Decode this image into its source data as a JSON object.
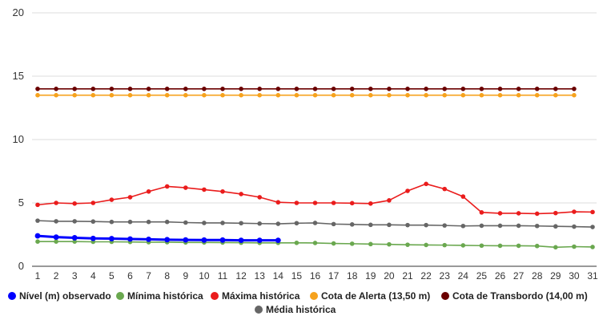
{
  "chart_data": {
    "type": "line",
    "x": [
      1,
      2,
      3,
      4,
      5,
      6,
      7,
      8,
      9,
      10,
      11,
      12,
      13,
      14,
      15,
      16,
      17,
      18,
      19,
      20,
      21,
      22,
      23,
      24,
      25,
      26,
      27,
      28,
      29,
      30,
      31
    ],
    "ylim": [
      0,
      20
    ],
    "yticks": [
      0,
      5,
      10,
      15,
      20
    ],
    "grid": "horizontal",
    "legend_position": "bottom",
    "series": [
      {
        "name": "Nível (m) observado",
        "color": "#0000ff",
        "values": [
          2.4,
          2.3,
          2.25,
          2.2,
          2.18,
          2.15,
          2.13,
          2.1,
          2.08,
          2.07,
          2.07,
          2.05,
          2.05,
          2.05,
          null,
          null,
          null,
          null,
          null,
          null,
          null,
          null,
          null,
          null,
          null,
          null,
          null,
          null,
          null,
          null,
          null
        ]
      },
      {
        "name": "Mínima histórica",
        "color": "#6aa84f",
        "values": [
          1.95,
          1.95,
          1.95,
          1.93,
          1.93,
          1.92,
          1.9,
          1.9,
          1.88,
          1.88,
          1.87,
          1.86,
          1.85,
          1.85,
          1.85,
          1.84,
          1.8,
          1.78,
          1.75,
          1.73,
          1.7,
          1.68,
          1.67,
          1.65,
          1.63,
          1.62,
          1.62,
          1.6,
          1.5,
          1.55,
          1.52
        ]
      },
      {
        "name": "Máxima histórica",
        "color": "#ea1c1c",
        "values": [
          4.85,
          5.0,
          4.95,
          5.0,
          5.25,
          5.45,
          5.9,
          6.3,
          6.2,
          6.05,
          5.9,
          5.7,
          5.45,
          5.05,
          5.0,
          5.0,
          5.0,
          4.98,
          4.95,
          5.2,
          5.95,
          6.5,
          6.1,
          5.5,
          4.25,
          4.18,
          4.18,
          4.15,
          4.2,
          4.3,
          4.28
        ]
      },
      {
        "name": "Cota de Alerta (13,50 m)",
        "color": "#f6a21d",
        "values": [
          13.5,
          13.5,
          13.5,
          13.5,
          13.5,
          13.5,
          13.5,
          13.5,
          13.5,
          13.5,
          13.5,
          13.5,
          13.5,
          13.5,
          13.5,
          13.5,
          13.5,
          13.5,
          13.5,
          13.5,
          13.5,
          13.5,
          13.5,
          13.5,
          13.5,
          13.5,
          13.5,
          13.5,
          13.5,
          13.5,
          null
        ]
      },
      {
        "name": "Cota de Transbordo (14,00 m)",
        "color": "#6b0000",
        "values": [
          14,
          14,
          14,
          14,
          14,
          14,
          14,
          14,
          14,
          14,
          14,
          14,
          14,
          14,
          14,
          14,
          14,
          14,
          14,
          14,
          14,
          14,
          14,
          14,
          14,
          14,
          14,
          14,
          14,
          14,
          null
        ]
      },
      {
        "name": "Média histórica",
        "color": "#666666",
        "values": [
          3.6,
          3.55,
          3.55,
          3.53,
          3.5,
          3.5,
          3.5,
          3.5,
          3.45,
          3.42,
          3.42,
          3.4,
          3.37,
          3.35,
          3.4,
          3.42,
          3.33,
          3.3,
          3.27,
          3.27,
          3.25,
          3.25,
          3.22,
          3.18,
          3.2,
          3.2,
          3.2,
          3.18,
          3.15,
          3.13,
          3.1
        ]
      }
    ]
  }
}
